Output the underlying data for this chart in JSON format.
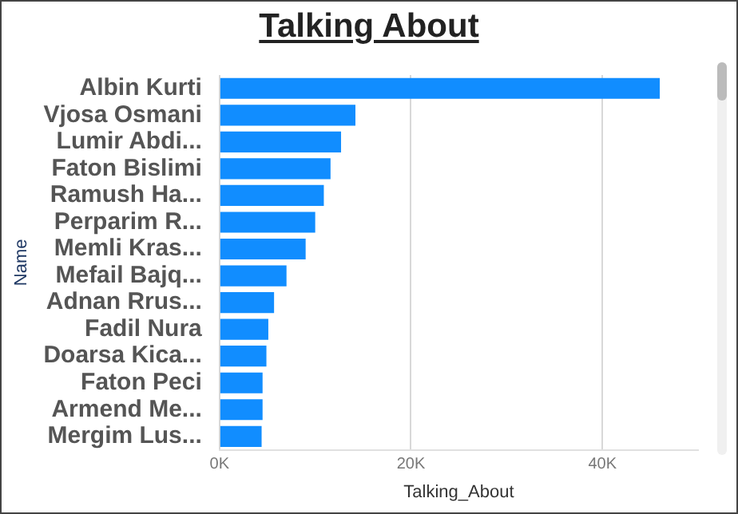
{
  "chart_data": {
    "type": "bar",
    "orientation": "horizontal",
    "title": "Talking About",
    "xlabel": "Talking_About",
    "ylabel": "Name",
    "categories": [
      "Albin Kurti",
      "Vjosa Osmani",
      "Lumir Abdi...",
      "Faton Bislimi",
      "Ramush Ha...",
      "Perparim R...",
      "Memli Kras...",
      "Mefail Bajq...",
      "Adnan Rrus...",
      "Fadil Nura",
      "Doarsa Kica...",
      "Faton Peci",
      "Armend Me...",
      "Mergim Lus..."
    ],
    "series": [
      {
        "color": "#118dff",
        "values": [
          46000,
          14200,
          12700,
          11600,
          10900,
          10000,
          9000,
          7000,
          5700,
          5100,
          4900,
          4500,
          4500,
          4400
        ]
      }
    ],
    "xlim": [
      0,
      50000
    ],
    "xticks": [
      {
        "value": 0,
        "label": "0K"
      },
      {
        "value": 20000,
        "label": "20K"
      },
      {
        "value": 40000,
        "label": "40K"
      }
    ],
    "grid": "x",
    "legend": false
  }
}
